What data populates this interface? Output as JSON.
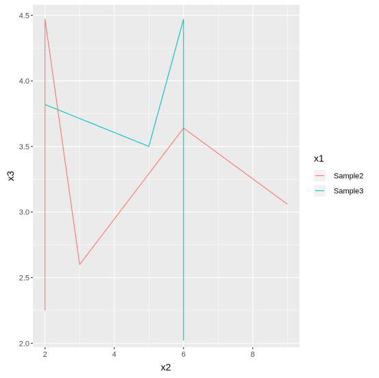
{
  "chart_data": {
    "type": "line",
    "xlabel": "x2",
    "ylabel": "x3",
    "xlim": [
      1.65,
      9.35
    ],
    "ylim": [
      1.97,
      4.58
    ],
    "x_ticks": [
      2,
      4,
      6,
      8
    ],
    "y_ticks": [
      2.0,
      2.5,
      3.0,
      3.5,
      4.0,
      4.5
    ],
    "x_tick_labels": [
      "2",
      "4",
      "6",
      "8"
    ],
    "y_tick_labels": [
      "2.0",
      "2.5",
      "3.0",
      "3.5",
      "4.0",
      "4.5"
    ],
    "grid": true,
    "legend": {
      "title": "x1",
      "position": "right"
    },
    "series": [
      {
        "name": "Sample2",
        "color": "#F8766D",
        "points": [
          [
            2,
            2.25
          ],
          [
            2,
            4.47
          ],
          [
            3,
            2.6
          ],
          [
            6,
            3.64
          ],
          [
            9,
            3.06
          ]
        ]
      },
      {
        "name": "Sample3",
        "color": "#00BFC4",
        "points": [
          [
            2,
            3.82
          ],
          [
            5,
            3.5
          ],
          [
            6,
            4.47
          ],
          [
            6,
            2.02
          ]
        ]
      }
    ]
  }
}
